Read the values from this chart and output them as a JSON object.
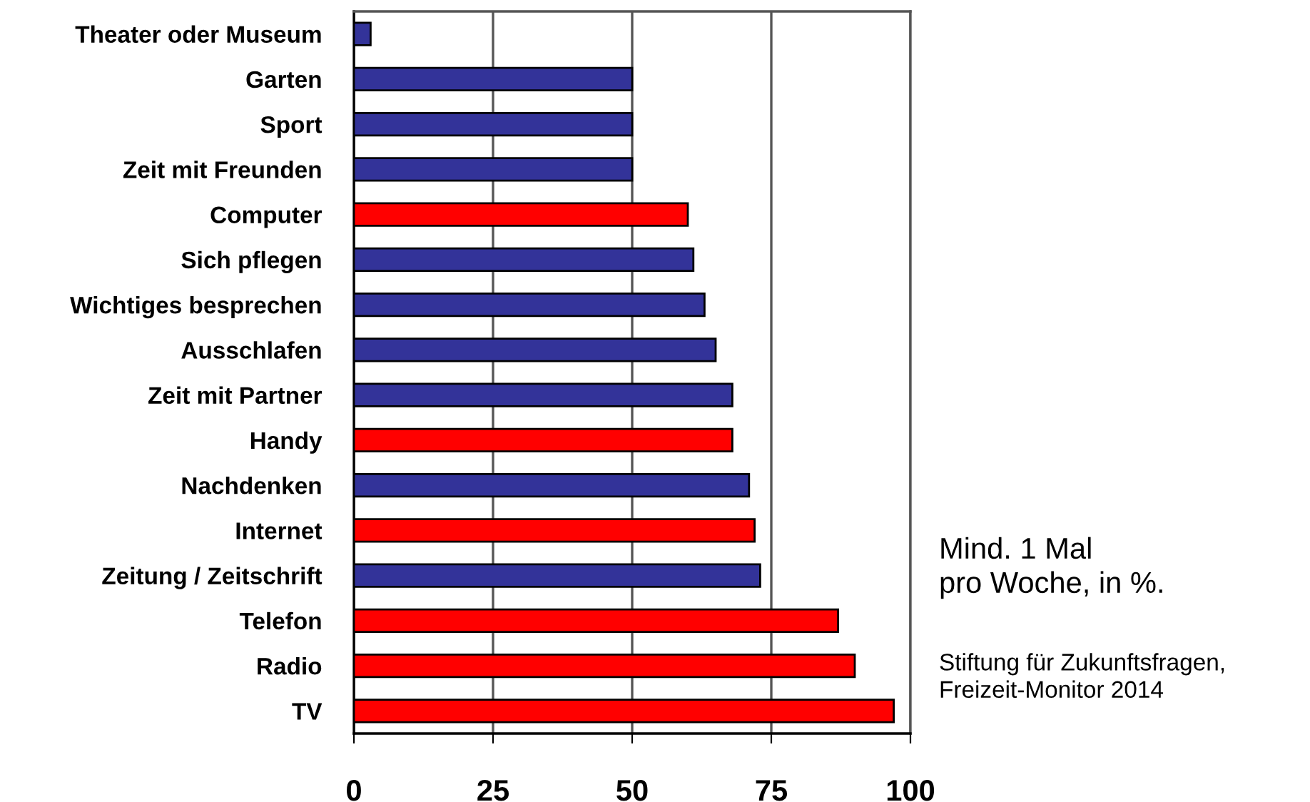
{
  "chart_data": {
    "type": "bar",
    "orientation": "horizontal",
    "categories": [
      "Theater oder Museum",
      "Garten",
      "Sport",
      "Zeit mit Freunden",
      "Computer",
      "Sich pflegen",
      "Wichtiges besprechen",
      "Ausschlafen",
      "Zeit mit Partner",
      "Handy",
      "Nachdenken",
      "Internet",
      "Zeitung / Zeitschrift",
      "Telefon",
      "Radio",
      "TV"
    ],
    "values": [
      3,
      50,
      50,
      50,
      60,
      61,
      63,
      65,
      68,
      68,
      71,
      72,
      73,
      87,
      90,
      97
    ],
    "colors": [
      "#333399",
      "#333399",
      "#333399",
      "#333399",
      "#ff0000",
      "#333399",
      "#333399",
      "#333399",
      "#333399",
      "#ff0000",
      "#333399",
      "#ff0000",
      "#333399",
      "#ff0000",
      "#ff0000",
      "#ff0000"
    ],
    "xlim": [
      0,
      100
    ],
    "xticks": [
      0,
      25,
      50,
      75,
      100
    ],
    "grid": "x",
    "annotations": [
      "Mind. 1 Mal\npro Woche, in %.",
      "Stiftung für Zukunftsfragen,\nFreizeit-Monitor 2014"
    ]
  }
}
